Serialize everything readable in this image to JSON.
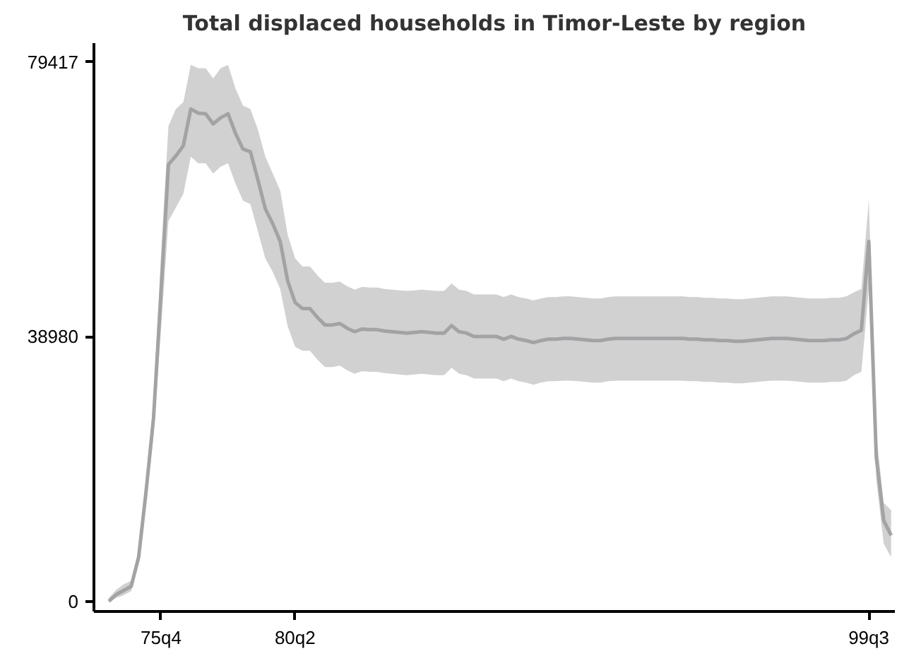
{
  "chart_data": {
    "type": "line",
    "title": "Total displaced households in Timor-Leste by region",
    "categories": [
      null,
      null,
      null,
      null,
      null,
      null,
      null,
      "75q4",
      null,
      null,
      null,
      null,
      null,
      null,
      null,
      null,
      null,
      null,
      null,
      null,
      null,
      null,
      null,
      null,
      null,
      "80q2",
      null,
      null,
      null,
      null,
      null,
      null,
      null,
      null,
      null,
      null,
      null,
      null,
      null,
      null,
      null,
      null,
      null,
      null,
      null,
      null,
      null,
      null,
      null,
      null,
      null,
      null,
      null,
      null,
      null,
      null,
      null,
      null,
      null,
      null,
      null,
      null,
      null,
      null,
      null,
      null,
      null,
      null,
      null,
      null,
      null,
      null,
      null,
      null,
      null,
      null,
      null,
      null,
      null,
      null,
      null,
      null,
      null,
      null,
      null,
      null,
      null,
      null,
      null,
      null,
      null,
      null,
      null,
      null,
      null,
      null,
      null,
      null,
      null,
      null,
      null,
      null,
      "99q3",
      null,
      null,
      null
    ],
    "ylim": [
      -1500,
      82200
    ],
    "yticks": [
      0,
      38980,
      79417
    ],
    "grid": false,
    "marker": "none",
    "line_style": "solid",
    "series": [
      {
        "color": "#a3a3a5",
        "values": [
          0,
          1000,
          1600,
          2200,
          6500,
          16200,
          27000,
          45400,
          64300,
          65600,
          67100,
          72500,
          71900,
          71800,
          70300,
          71200,
          71800,
          68900,
          66600,
          66200,
          62100,
          57800,
          55600,
          53000,
          47200,
          44000,
          43100,
          43100,
          41800,
          40700,
          40700,
          40900,
          40200,
          39700,
          40100,
          40000,
          40000,
          39800,
          39700,
          39600,
          39500,
          39600,
          39700,
          39600,
          39500,
          39500,
          40600,
          39700,
          39500,
          39000,
          39000,
          39000,
          39000,
          38600,
          39000,
          38600,
          38400,
          38100,
          38400,
          38600,
          38600,
          38700,
          38700,
          38600,
          38500,
          38400,
          38400,
          38600,
          38700,
          38700,
          38700,
          38700,
          38700,
          38700,
          38700,
          38700,
          38700,
          38700,
          38600,
          38600,
          38500,
          38500,
          38400,
          38400,
          38300,
          38300,
          38400,
          38500,
          38600,
          38700,
          38700,
          38700,
          38600,
          38500,
          38400,
          38400,
          38400,
          38500,
          38500,
          38700,
          39400,
          39900,
          53000,
          21300,
          11900,
          9700
        ],
        "lower": [
          0,
          500,
          900,
          1500,
          5500,
          14500,
          24500,
          40000,
          56000,
          58000,
          60000,
          65500,
          64500,
          64500,
          63000,
          64000,
          64500,
          61500,
          59000,
          58500,
          54500,
          50500,
          48500,
          46000,
          40500,
          37500,
          36900,
          36900,
          35600,
          34500,
          34500,
          34700,
          34000,
          33500,
          33900,
          33800,
          33800,
          33600,
          33500,
          33400,
          33300,
          33400,
          33500,
          33400,
          33300,
          33300,
          34400,
          33500,
          33300,
          32800,
          32800,
          32800,
          32800,
          32400,
          32800,
          32400,
          32200,
          31900,
          32200,
          32400,
          32400,
          32500,
          32500,
          32400,
          32300,
          32200,
          32200,
          32400,
          32500,
          32500,
          32500,
          32500,
          32500,
          32500,
          32500,
          32500,
          32500,
          32500,
          32400,
          32400,
          32300,
          32300,
          32200,
          32200,
          32100,
          32100,
          32200,
          32300,
          32400,
          32500,
          32500,
          32500,
          32400,
          32300,
          32200,
          32200,
          32200,
          32300,
          32300,
          32500,
          33300,
          33800,
          46000,
          18000,
          8500,
          6500
        ],
        "upper": [
          500,
          1700,
          2500,
          3000,
          7500,
          18000,
          29500,
          51000,
          70000,
          72500,
          73500,
          79000,
          78500,
          78500,
          77000,
          78500,
          79000,
          75500,
          73000,
          72500,
          69500,
          65500,
          63000,
          60500,
          54000,
          50500,
          49300,
          49300,
          48000,
          46900,
          46900,
          47100,
          46400,
          45900,
          46300,
          46200,
          46200,
          46000,
          45900,
          45800,
          45700,
          45800,
          45900,
          45800,
          45700,
          45700,
          46800,
          45900,
          45700,
          45200,
          45200,
          45200,
          45200,
          44800,
          45200,
          44800,
          44600,
          44300,
          44600,
          44800,
          44800,
          44900,
          44900,
          44800,
          44700,
          44600,
          44600,
          44800,
          44900,
          44900,
          44900,
          44900,
          44900,
          44900,
          44900,
          44900,
          44900,
          44900,
          44800,
          44800,
          44700,
          44700,
          44600,
          44600,
          44500,
          44500,
          44600,
          44700,
          44800,
          44900,
          44900,
          44900,
          44800,
          44700,
          44600,
          44600,
          44600,
          44700,
          44700,
          44900,
          45500,
          46000,
          59100,
          24500,
          14500,
          13400
        ]
      }
    ]
  }
}
